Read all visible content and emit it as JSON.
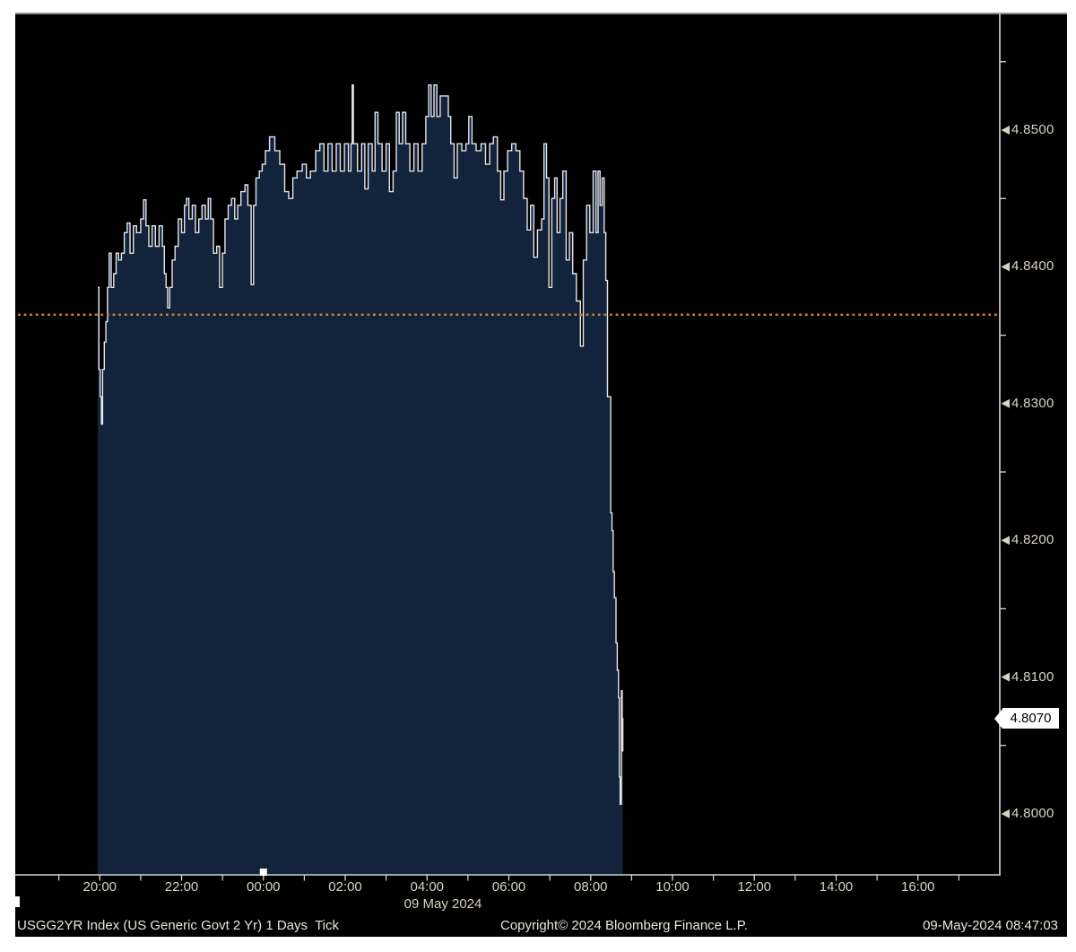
{
  "chart_data": {
    "type": "line",
    "title": "USGG2YR Index (US Generic Govt 2 Yr) 1 Days Tick",
    "step": "after",
    "x_unit": "hours_from_midnight_09_May_2024",
    "series": [
      {
        "name": "USGG2YR Last Price",
        "points": [
          [
            -4.05,
            4.8385
          ],
          [
            -4.02,
            4.8325
          ],
          [
            -3.99,
            4.8305
          ],
          [
            -3.96,
            4.8285
          ],
          [
            -3.93,
            4.8325
          ],
          [
            -3.89,
            4.8345
          ],
          [
            -3.85,
            4.836
          ],
          [
            -3.81,
            4.8385
          ],
          [
            -3.77,
            4.841
          ],
          [
            -3.72,
            4.8385
          ],
          [
            -3.66,
            4.8395
          ],
          [
            -3.6,
            4.841
          ],
          [
            -3.54,
            4.8405
          ],
          [
            -3.47,
            4.841
          ],
          [
            -3.4,
            4.8425
          ],
          [
            -3.33,
            4.8432
          ],
          [
            -3.26,
            4.841
          ],
          [
            -3.18,
            4.843
          ],
          [
            -3.1,
            4.8425
          ],
          [
            -3.0,
            4.8435
          ],
          [
            -2.93,
            4.8449
          ],
          [
            -2.87,
            4.843
          ],
          [
            -2.8,
            4.8415
          ],
          [
            -2.72,
            4.843
          ],
          [
            -2.64,
            4.8415
          ],
          [
            -2.55,
            4.843
          ],
          [
            -2.47,
            4.8415
          ],
          [
            -2.42,
            4.8395
          ],
          [
            -2.38,
            4.8385
          ],
          [
            -2.34,
            4.837
          ],
          [
            -2.29,
            4.8385
          ],
          [
            -2.23,
            4.8405
          ],
          [
            -2.16,
            4.8415
          ],
          [
            -2.08,
            4.8435
          ],
          [
            -2.0,
            4.8425
          ],
          [
            -1.93,
            4.8445
          ],
          [
            -1.88,
            4.845
          ],
          [
            -1.82,
            4.8435
          ],
          [
            -1.74,
            4.8445
          ],
          [
            -1.66,
            4.8425
          ],
          [
            -1.58,
            4.8435
          ],
          [
            -1.5,
            4.8445
          ],
          [
            -1.42,
            4.8435
          ],
          [
            -1.35,
            4.845
          ],
          [
            -1.29,
            4.8435
          ],
          [
            -1.22,
            4.841
          ],
          [
            -1.14,
            4.8415
          ],
          [
            -1.07,
            4.8385
          ],
          [
            -1.0,
            4.841
          ],
          [
            -0.94,
            4.8435
          ],
          [
            -0.86,
            4.8445
          ],
          [
            -0.78,
            4.845
          ],
          [
            -0.7,
            4.8435
          ],
          [
            -0.63,
            4.8445
          ],
          [
            -0.55,
            4.8455
          ],
          [
            -0.45,
            4.846
          ],
          [
            -0.38,
            4.8445
          ],
          [
            -0.3,
            4.8387
          ],
          [
            -0.24,
            4.8445
          ],
          [
            -0.18,
            4.8465
          ],
          [
            -0.1,
            4.847
          ],
          [
            -0.03,
            4.8475
          ],
          [
            0.05,
            4.8485
          ],
          [
            0.15,
            4.8495
          ],
          [
            0.28,
            4.8485
          ],
          [
            0.4,
            4.8475
          ],
          [
            0.52,
            4.8455
          ],
          [
            0.62,
            4.845
          ],
          [
            0.72,
            4.8465
          ],
          [
            0.82,
            4.847
          ],
          [
            0.95,
            4.8475
          ],
          [
            1.05,
            4.8465
          ],
          [
            1.15,
            4.847
          ],
          [
            1.28,
            4.8485
          ],
          [
            1.38,
            4.849
          ],
          [
            1.48,
            4.847
          ],
          [
            1.58,
            4.849
          ],
          [
            1.68,
            4.847
          ],
          [
            1.78,
            4.849
          ],
          [
            1.88,
            4.847
          ],
          [
            1.98,
            4.849
          ],
          [
            2.08,
            4.847
          ],
          [
            2.14,
            4.849
          ],
          [
            2.17,
            4.8533
          ],
          [
            2.2,
            4.849
          ],
          [
            2.3,
            4.847
          ],
          [
            2.4,
            4.849
          ],
          [
            2.48,
            4.8457
          ],
          [
            2.56,
            4.849
          ],
          [
            2.66,
            4.847
          ],
          [
            2.73,
            4.8513
          ],
          [
            2.8,
            4.849
          ],
          [
            2.9,
            4.847
          ],
          [
            3.0,
            4.849
          ],
          [
            3.08,
            4.8455
          ],
          [
            3.17,
            4.847
          ],
          [
            3.25,
            4.8513
          ],
          [
            3.32,
            4.849
          ],
          [
            3.4,
            4.8513
          ],
          [
            3.48,
            4.849
          ],
          [
            3.58,
            4.847
          ],
          [
            3.68,
            4.849
          ],
          [
            3.78,
            4.847
          ],
          [
            3.88,
            4.849
          ],
          [
            3.97,
            4.851
          ],
          [
            4.04,
            4.8533
          ],
          [
            4.1,
            4.851
          ],
          [
            4.17,
            4.8533
          ],
          [
            4.24,
            4.851
          ],
          [
            4.32,
            4.8525
          ],
          [
            4.45,
            4.8525
          ],
          [
            4.52,
            4.851
          ],
          [
            4.58,
            4.849
          ],
          [
            4.66,
            4.8465
          ],
          [
            4.74,
            4.849
          ],
          [
            4.85,
            4.8485
          ],
          [
            4.95,
            4.849
          ],
          [
            5.02,
            4.851
          ],
          [
            5.1,
            4.849
          ],
          [
            5.2,
            4.8485
          ],
          [
            5.32,
            4.849
          ],
          [
            5.43,
            4.8475
          ],
          [
            5.53,
            4.849
          ],
          [
            5.62,
            4.8495
          ],
          [
            5.72,
            4.847
          ],
          [
            5.8,
            4.8449
          ],
          [
            5.88,
            4.847
          ],
          [
            5.97,
            4.8485
          ],
          [
            6.07,
            4.849
          ],
          [
            6.17,
            4.8485
          ],
          [
            6.27,
            4.847
          ],
          [
            6.36,
            4.845
          ],
          [
            6.45,
            4.8427
          ],
          [
            6.53,
            4.8445
          ],
          [
            6.61,
            4.8407
          ],
          [
            6.7,
            4.8427
          ],
          [
            6.8,
            4.8435
          ],
          [
            6.86,
            4.849
          ],
          [
            6.92,
            4.8465
          ],
          [
            6.98,
            4.8385
          ],
          [
            7.05,
            4.845
          ],
          [
            7.12,
            4.8465
          ],
          [
            7.18,
            4.8425
          ],
          [
            7.25,
            4.845
          ],
          [
            7.32,
            4.847
          ],
          [
            7.4,
            4.8405
          ],
          [
            7.48,
            4.8425
          ],
          [
            7.56,
            4.8395
          ],
          [
            7.65,
            4.8375
          ],
          [
            7.75,
            4.8342
          ],
          [
            7.82,
            4.8405
          ],
          [
            7.9,
            4.8445
          ],
          [
            7.98,
            4.8425
          ],
          [
            8.06,
            4.847
          ],
          [
            8.13,
            4.8425
          ],
          [
            8.18,
            4.847
          ],
          [
            8.23,
            4.8445
          ],
          [
            8.28,
            4.8465
          ],
          [
            8.33,
            4.8425
          ],
          [
            8.37,
            4.839
          ],
          [
            8.41,
            4.8305
          ],
          [
            8.49,
            4.822
          ],
          [
            8.52,
            4.8207
          ],
          [
            8.55,
            4.8177
          ],
          [
            8.58,
            4.8158
          ],
          [
            8.62,
            4.8125
          ],
          [
            8.65,
            4.8105
          ],
          [
            8.68,
            4.8085
          ],
          [
            8.7,
            4.8027
          ],
          [
            8.72,
            4.8007
          ],
          [
            8.75,
            4.809
          ],
          [
            8.77,
            4.8046
          ],
          [
            8.785,
            4.807
          ]
        ]
      }
    ],
    "prev_close": {
      "value": 4.8365
    },
    "last": {
      "value": 4.807,
      "label": "4.8070"
    },
    "y_axis": {
      "side": "right",
      "major_ticks": [
        {
          "value": 4.85,
          "label": "4.8500"
        },
        {
          "value": 4.84,
          "label": "4.8400"
        },
        {
          "value": 4.83,
          "label": "4.8300"
        },
        {
          "value": 4.82,
          "label": "4.8200"
        },
        {
          "value": 4.81,
          "label": "4.8100"
        },
        {
          "value": 4.8,
          "label": "4.8000"
        }
      ],
      "minor_ticks": [
        4.855,
        4.845,
        4.835,
        4.825,
        4.815,
        4.805
      ],
      "range": [
        4.7955,
        4.8581
      ]
    },
    "x_axis": {
      "labels": [
        {
          "hour": -4,
          "label": "20:00"
        },
        {
          "hour": -2,
          "label": "22:00"
        },
        {
          "hour": 0,
          "label": "00:00"
        },
        {
          "hour": 2,
          "label": "02:00"
        },
        {
          "hour": 4,
          "label": "04:00"
        },
        {
          "hour": 6,
          "label": "06:00"
        },
        {
          "hour": 8,
          "label": "08:00"
        },
        {
          "hour": 10,
          "label": "10:00"
        },
        {
          "hour": 12,
          "label": "12:00"
        },
        {
          "hour": 14,
          "label": "14:00"
        },
        {
          "hour": 16,
          "label": "16:00"
        }
      ],
      "minor_tick_hours": [
        -5,
        -3,
        -1,
        1,
        3,
        5,
        7,
        9,
        11,
        13,
        15,
        17
      ],
      "range_hours": [
        -6,
        18
      ],
      "date_label": "09 May 2024",
      "midnight_marker_hour": 0
    },
    "grid": false,
    "legend": "none",
    "colors": {
      "line": "#e3e6ee",
      "fill": "#13233c",
      "prev_close_line": "#c9812c",
      "axis": "#d9d9d9",
      "axis_text": "#d9d3c5",
      "last_box_bg": "#ffffff",
      "last_box_text": "#000000",
      "panel_bg": "#000000",
      "page_bg": "#ffffff"
    }
  },
  "status_bar": {
    "left": "USGG2YR Index (US Generic Govt 2 Yr) 1 Days  Tick",
    "center": "Copyright© 2024 Bloomberg Finance L.P.",
    "right": "09-May-2024 08:47:03"
  }
}
